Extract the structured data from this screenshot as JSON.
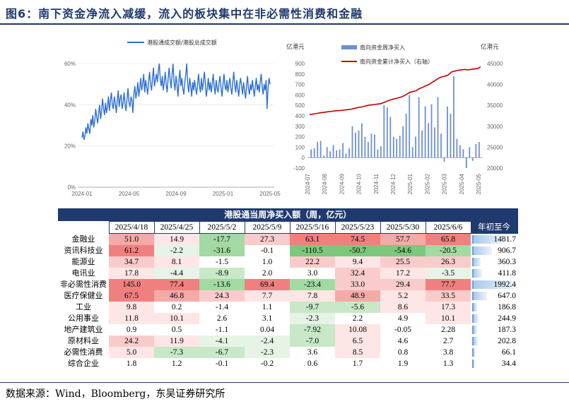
{
  "figure_title": "图6：南下资金净流入减缓，流入的板块集中在非必需性消费和金融",
  "source_note": "数据来源：Wind，Bloomberg，东吴证券研究所",
  "chart_data": [
    {
      "type": "line",
      "legend": [
        "港股通成交额/港股总成交额"
      ],
      "series_color": "#2b6fd6",
      "x_tick_labels": [
        "2024-01",
        "2024-05",
        "2024-09",
        "2025-01",
        "2025-05"
      ],
      "y_tick_labels": [
        "0%",
        "20%",
        "40%",
        "60%"
      ],
      "ylim": [
        0,
        60
      ],
      "series": [
        {
          "name": "港股通成交额/港股总成交额",
          "x_range": [
            "2024-01",
            "2025-05"
          ],
          "values": [
            24,
            27,
            23,
            25,
            29,
            26,
            31,
            28,
            26,
            33,
            30,
            35,
            29,
            32,
            38,
            34,
            31,
            36,
            40,
            33,
            37,
            43,
            38,
            35,
            41,
            36,
            39,
            44,
            37,
            42,
            46,
            40,
            38,
            44,
            41,
            36,
            42,
            47,
            39,
            43,
            45,
            38,
            41,
            46,
            40,
            37,
            43,
            48,
            41,
            39,
            44,
            42,
            36,
            45,
            49,
            43,
            46,
            51,
            44,
            48,
            53,
            47,
            50,
            55,
            46,
            52,
            49,
            45,
            51,
            56,
            50,
            47,
            53,
            58,
            49,
            52,
            55,
            51,
            57,
            60,
            52,
            49,
            54,
            47,
            51,
            56,
            50,
            46,
            53,
            58,
            52,
            48,
            55,
            60,
            51,
            47,
            54,
            50,
            44,
            52,
            57,
            49,
            53,
            48,
            45,
            51,
            55,
            60,
            50,
            46,
            53,
            49,
            44,
            51,
            47,
            52,
            48,
            45,
            50,
            55,
            49,
            46,
            53,
            47,
            51,
            56,
            50,
            44,
            48,
            53,
            47,
            51,
            46,
            50,
            55,
            49,
            45,
            52,
            48,
            46,
            51,
            54,
            48,
            44,
            50,
            55,
            49,
            47,
            52,
            46,
            50,
            53,
            48,
            45,
            51,
            56,
            50,
            46,
            52,
            48,
            44,
            50,
            53,
            49,
            45,
            51,
            47,
            43,
            49,
            54,
            48,
            45,
            50,
            47,
            52,
            48,
            44,
            49,
            53,
            47,
            50,
            46,
            51,
            55,
            49,
            45,
            50,
            47,
            52,
            38,
            48,
            53,
            50
          ]
        }
      ]
    },
    {
      "type": "bar+line",
      "legend": [
        "南向资金周净买入",
        "南向资金累计净买入（右轴）"
      ],
      "left_unit": "亿港元",
      "right_unit": "亿港元",
      "bar_color": "#6d8fd6",
      "line_color": "#c00000",
      "x_tick_labels": [
        "2024-07",
        "2024-08",
        "2024-09",
        "2024-10",
        "2024-11",
        "2024-12",
        "2025-01",
        "2025-02",
        "2025-03",
        "2025-04",
        "2025-05"
      ],
      "left_ticks": [
        "-100",
        "0",
        "100",
        "200",
        "300",
        "400",
        "500",
        "600",
        "700",
        "800",
        "900"
      ],
      "right_ticks": [
        "20000",
        "25000",
        "30000",
        "35000",
        "40000",
        "45000"
      ],
      "left_ylim": [
        -100,
        900
      ],
      "right_ylim": [
        20000,
        45000
      ],
      "series": [
        {
          "name": "南向资金周净买入",
          "values": [
            80,
            90,
            150,
            160,
            20,
            100,
            60,
            120,
            70,
            80,
            140,
            40,
            90,
            300,
            240,
            260,
            330,
            200,
            150,
            230,
            220,
            80,
            110,
            500,
            480,
            390,
            200,
            180,
            210,
            300,
            420,
            600,
            100,
            200,
            580,
            260,
            490,
            330,
            510,
            290,
            580,
            230,
            -40,
            490,
            420,
            780,
            180,
            120,
            80,
            -100,
            100,
            -30,
            130,
            150
          ]
        },
        {
          "name": "南向资金累计净买入（右轴）",
          "values": [
            32800,
            32900,
            33000,
            33200,
            33300,
            33400,
            33500,
            33600,
            33700,
            33750,
            33800,
            33900,
            34000,
            34100,
            34300,
            34500,
            34600,
            34800,
            35000,
            35100,
            35200,
            35300,
            35400,
            35700,
            36000,
            36300,
            36500,
            36700,
            36900,
            37200,
            37600,
            38100,
            38300,
            38500,
            39000,
            39300,
            39700,
            40000,
            40500,
            41000,
            41500,
            41800,
            42000,
            42300,
            43000,
            43200,
            43400,
            43500,
            43600,
            43500,
            43600,
            43700,
            43800,
            44200
          ]
        }
      ]
    },
    {
      "type": "table",
      "title": "港股通当周净买入额（周，亿元）",
      "columns": [
        "2025/4/18",
        "2025/4/25",
        "2025/5/2",
        "2025/5/9",
        "2025/5/16",
        "2025/5/23",
        "2025/5/30",
        "2025/6/6",
        "年初至今"
      ],
      "rows": [
        {
          "label": "金融业",
          "values": [
            "51.0",
            "14.9",
            "-17.7",
            "27.3",
            "63.1",
            "74.5",
            "57.7",
            "65.8"
          ],
          "ytd": "1481.7",
          "ytd_num": 1481.7
        },
        {
          "label": "资讯科技业",
          "values": [
            "61.2",
            "-2.2",
            "-31.6",
            "-0.1",
            "-110.5",
            "-50.7",
            "-54.6",
            "-20.5"
          ],
          "ytd": "906.7",
          "ytd_num": 906.7
        },
        {
          "label": "能源业",
          "values": [
            "34.7",
            "8.1",
            "-1.5",
            "1.0",
            "22.2",
            "9.4",
            "25.5",
            "26.3"
          ],
          "ytd": "360.3",
          "ytd_num": 360.3
        },
        {
          "label": "电讯业",
          "values": [
            "17.8",
            "-4.4",
            "-8.9",
            "2.0",
            "3.0",
            "32.4",
            "17.2",
            "-3.5"
          ],
          "ytd": "411.8",
          "ytd_num": 411.8
        },
        {
          "label": "非必需性消费",
          "values": [
            "145.0",
            "77.4",
            "-13.6",
            "69.4",
            "-23.4",
            "33.0",
            "29.4",
            "77.7"
          ],
          "ytd": "1992.4",
          "ytd_num": 1992.4
        },
        {
          "label": "医疗保健业",
          "values": [
            "67.5",
            "46.8",
            "24.3",
            "7.7",
            "7.8",
            "48.9",
            "5.2",
            "33.5"
          ],
          "ytd": "647.0",
          "ytd_num": 647.0
        },
        {
          "label": "工业",
          "values": [
            "9.8",
            "0.2",
            "-1.4",
            "1.1",
            "-9.7",
            "-5.6",
            "8.6",
            "17.3"
          ],
          "ytd": "186.8",
          "ytd_num": 186.8
        },
        {
          "label": "公用事业",
          "values": [
            "11.8",
            "10.1",
            "2.6",
            "3.1",
            "-2.3",
            "2.2",
            "4.9",
            "10.1"
          ],
          "ytd": "244.9",
          "ytd_num": 244.9
        },
        {
          "label": "地产建筑业",
          "values": [
            "0.9",
            "0.5",
            "-1.1",
            "0.04",
            "-7.92",
            "10.08",
            "-0.05",
            "2.28"
          ],
          "ytd": "187.3",
          "ytd_num": 187.3
        },
        {
          "label": "原材料业",
          "values": [
            "24.2",
            "11.9",
            "-4.1",
            "-2.4",
            "-7.0",
            "6.5",
            "4.6",
            "2.7"
          ],
          "ytd": "202.8",
          "ytd_num": 202.8
        },
        {
          "label": "必需性消费",
          "values": [
            "5.0",
            "-7.3",
            "-6.7",
            "-2.3",
            "3.6",
            "8.5",
            "0.8",
            "3.8"
          ],
          "ytd": "66.1",
          "ytd_num": 66.1
        },
        {
          "label": "综合企业",
          "values": [
            "1.8",
            "1.2",
            "-0.1",
            "-0.2",
            "0.6",
            "1.7",
            "1.9",
            "1.3"
          ],
          "ytd": "34.4",
          "ytd_num": 34.4
        }
      ]
    }
  ]
}
